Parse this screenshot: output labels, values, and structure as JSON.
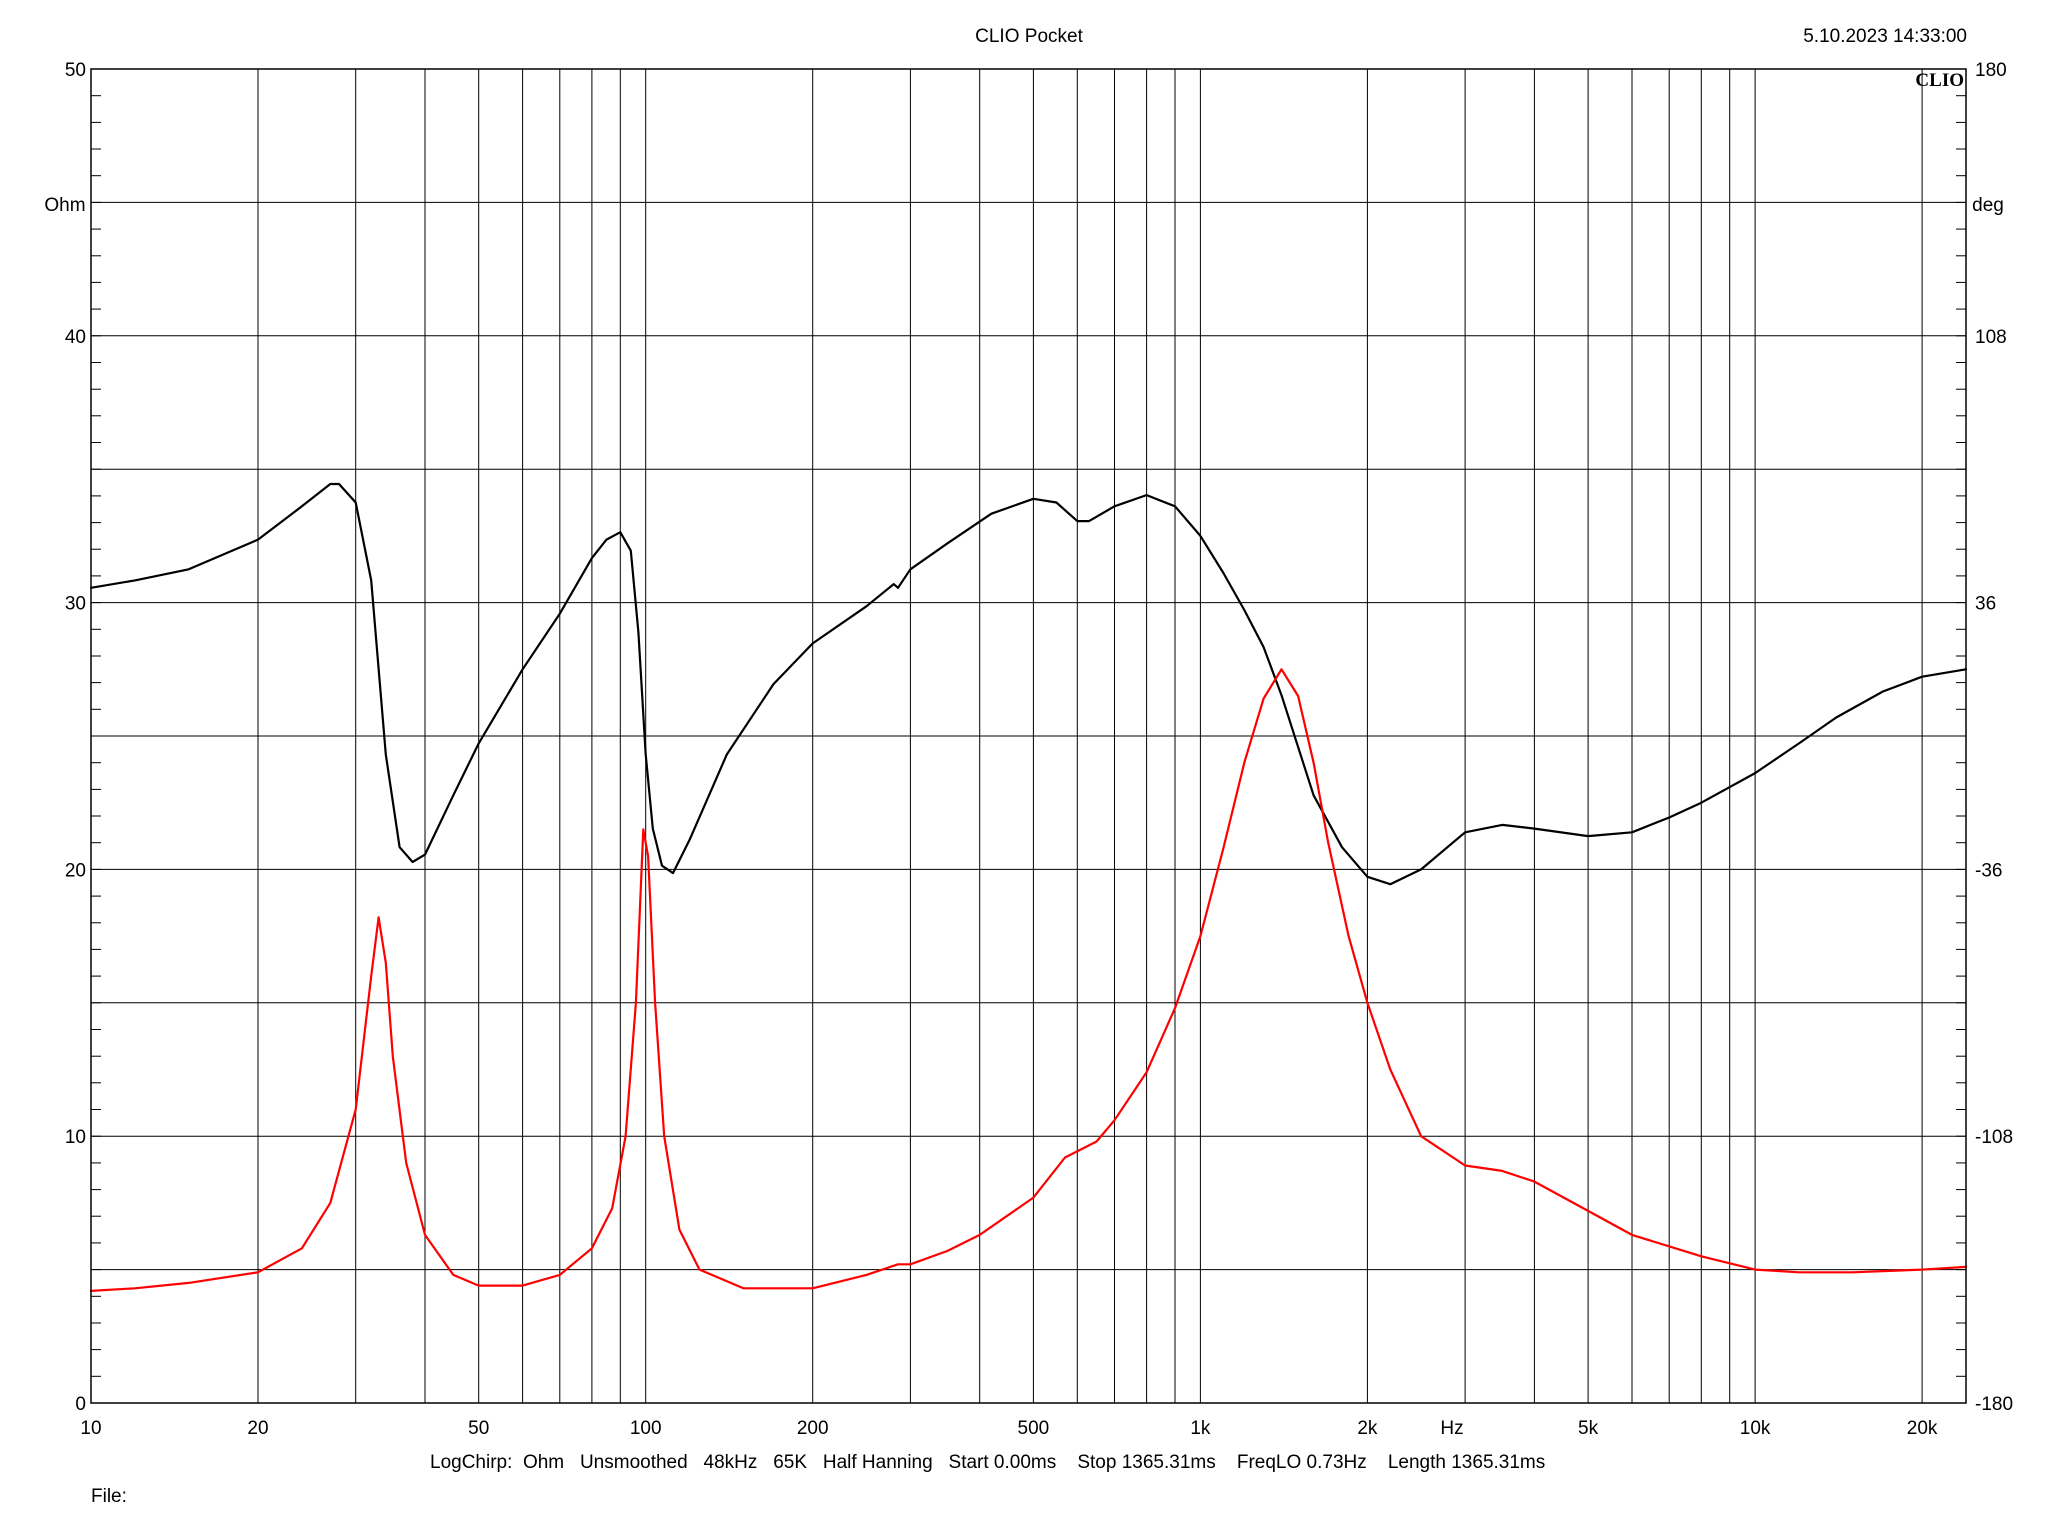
{
  "header": {
    "title": "CLIO Pocket",
    "timestamp": "5.10.2023 14:33:00",
    "brand": "CLIO"
  },
  "footer": {
    "settings": "LogChirp:  Ohm   Unsmoothed   48kHz   65K   Half Hanning   Start 0.00ms    Stop 1365.31ms    FreqLO 0.73Hz    Length 1365.31ms",
    "file_label": "File:"
  },
  "chart_data": {
    "type": "line",
    "xscale": "log",
    "xlim": [
      10,
      24000
    ],
    "ylim_left": [
      0,
      50
    ],
    "ylim_right": [
      -180,
      180
    ],
    "grid": true,
    "x_unit_label": "Hz",
    "y_left_unit": "Ohm",
    "y_right_unit": "deg",
    "x_ticks": [
      {
        "value": 10,
        "label": "10"
      },
      {
        "value": 20,
        "label": "20"
      },
      {
        "value": 50,
        "label": "50"
      },
      {
        "value": 100,
        "label": "100"
      },
      {
        "value": 200,
        "label": "200"
      },
      {
        "value": 500,
        "label": "500"
      },
      {
        "value": 1000,
        "label": "1k"
      },
      {
        "value": 2000,
        "label": "2k"
      },
      {
        "value": 5000,
        "label": "5k"
      },
      {
        "value": 10000,
        "label": "10k"
      },
      {
        "value": 20000,
        "label": "20k"
      }
    ],
    "y_left_ticks": [
      {
        "value": 0,
        "label": "0"
      },
      {
        "value": 10,
        "label": "10"
      },
      {
        "value": 20,
        "label": "20"
      },
      {
        "value": 30,
        "label": "30"
      },
      {
        "value": 40,
        "label": "40"
      },
      {
        "value": 50,
        "label": "50"
      }
    ],
    "y_right_ticks": [
      {
        "value": -180,
        "label": "-180"
      },
      {
        "value": -108,
        "label": "-108"
      },
      {
        "value": -36,
        "label": "-36"
      },
      {
        "value": 36,
        "label": "36"
      },
      {
        "value": 108,
        "label": "108"
      },
      {
        "value": 180,
        "label": "180"
      }
    ],
    "series": [
      {
        "axis": "right",
        "color": "#000000",
        "points": [
          [
            10,
            40
          ],
          [
            12,
            42
          ],
          [
            15,
            45
          ],
          [
            20,
            53
          ],
          [
            24,
            62
          ],
          [
            27,
            68
          ],
          [
            28,
            68
          ],
          [
            30,
            63
          ],
          [
            32,
            42
          ],
          [
            34,
            -5
          ],
          [
            36,
            -30
          ],
          [
            38,
            -34
          ],
          [
            40,
            -32
          ],
          [
            45,
            -16
          ],
          [
            50,
            -2
          ],
          [
            60,
            18
          ],
          [
            70,
            33
          ],
          [
            80,
            48
          ],
          [
            85,
            53
          ],
          [
            90,
            55
          ],
          [
            94,
            50
          ],
          [
            97,
            28
          ],
          [
            100,
            -5
          ],
          [
            103,
            -25
          ],
          [
            107,
            -35
          ],
          [
            112,
            -37
          ],
          [
            120,
            -28
          ],
          [
            140,
            -5
          ],
          [
            170,
            14
          ],
          [
            200,
            25
          ],
          [
            250,
            35
          ],
          [
            280,
            41
          ],
          [
            285,
            40
          ],
          [
            300,
            45
          ],
          [
            350,
            52
          ],
          [
            420,
            60
          ],
          [
            500,
            64
          ],
          [
            550,
            63
          ],
          [
            600,
            58
          ],
          [
            630,
            58
          ],
          [
            700,
            62
          ],
          [
            800,
            65
          ],
          [
            900,
            62
          ],
          [
            1000,
            54
          ],
          [
            1100,
            44
          ],
          [
            1200,
            34
          ],
          [
            1300,
            24
          ],
          [
            1400,
            11
          ],
          [
            1600,
            -16
          ],
          [
            1800,
            -30
          ],
          [
            2000,
            -38
          ],
          [
            2200,
            -40
          ],
          [
            2500,
            -36
          ],
          [
            3000,
            -26
          ],
          [
            3500,
            -24
          ],
          [
            4000,
            -25
          ],
          [
            5000,
            -27
          ],
          [
            6000,
            -26
          ],
          [
            7000,
            -22
          ],
          [
            8000,
            -18
          ],
          [
            10000,
            -10
          ],
          [
            12000,
            -2
          ],
          [
            14000,
            5
          ],
          [
            17000,
            12
          ],
          [
            20000,
            16
          ],
          [
            24000,
            18
          ]
        ]
      },
      {
        "axis": "left",
        "color": "#ff0000",
        "points": [
          [
            10,
            4.2
          ],
          [
            12,
            4.3
          ],
          [
            15,
            4.5
          ],
          [
            20,
            4.9
          ],
          [
            24,
            5.8
          ],
          [
            27,
            7.5
          ],
          [
            30,
            11
          ],
          [
            32,
            16
          ],
          [
            33,
            18.2
          ],
          [
            34,
            16.5
          ],
          [
            35,
            13
          ],
          [
            37,
            9
          ],
          [
            40,
            6.3
          ],
          [
            45,
            4.8
          ],
          [
            50,
            4.4
          ],
          [
            60,
            4.4
          ],
          [
            70,
            4.8
          ],
          [
            80,
            5.8
          ],
          [
            87,
            7.3
          ],
          [
            92,
            10
          ],
          [
            96,
            15
          ],
          [
            99,
            21.5
          ],
          [
            101,
            20.5
          ],
          [
            104,
            15
          ],
          [
            108,
            10
          ],
          [
            115,
            6.5
          ],
          [
            125,
            5
          ],
          [
            150,
            4.3
          ],
          [
            200,
            4.3
          ],
          [
            250,
            4.8
          ],
          [
            285,
            5.2
          ],
          [
            300,
            5.2
          ],
          [
            350,
            5.7
          ],
          [
            400,
            6.3
          ],
          [
            500,
            7.7
          ],
          [
            570,
            9.2
          ],
          [
            650,
            9.8
          ],
          [
            700,
            10.6
          ],
          [
            800,
            12.4
          ],
          [
            900,
            14.8
          ],
          [
            1000,
            17.5
          ],
          [
            1100,
            20.8
          ],
          [
            1200,
            24
          ],
          [
            1300,
            26.4
          ],
          [
            1400,
            27.5
          ],
          [
            1500,
            26.5
          ],
          [
            1600,
            24
          ],
          [
            1700,
            21
          ],
          [
            1850,
            17.5
          ],
          [
            2000,
            15
          ],
          [
            2200,
            12.5
          ],
          [
            2500,
            10
          ],
          [
            3000,
            8.9
          ],
          [
            3500,
            8.7
          ],
          [
            4000,
            8.3
          ],
          [
            5000,
            7.2
          ],
          [
            6000,
            6.3
          ],
          [
            8000,
            5.5
          ],
          [
            10000,
            5.0
          ],
          [
            12000,
            4.9
          ],
          [
            15000,
            4.9
          ],
          [
            20000,
            5.0
          ],
          [
            24000,
            5.1
          ]
        ]
      }
    ]
  }
}
